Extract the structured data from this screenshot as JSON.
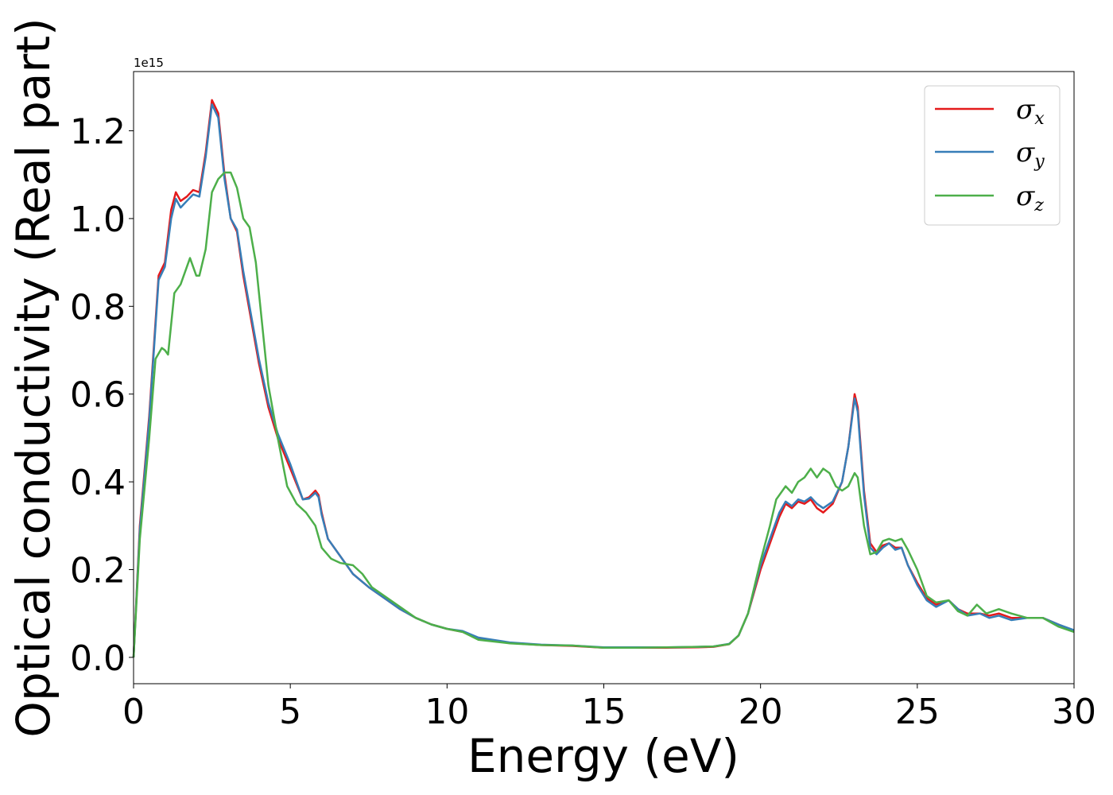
{
  "chart_data": {
    "type": "line",
    "title": "",
    "xlabel": "Energy (eV)",
    "ylabel": "Optical conductivity (Real part)",
    "y_offset_label": "1e15",
    "xlim": [
      0,
      30
    ],
    "ylim": [
      -0.06,
      1.335
    ],
    "x_ticks": [
      0,
      5,
      10,
      15,
      20,
      25,
      30
    ],
    "x_tick_labels": [
      "0",
      "5",
      "10",
      "15",
      "20",
      "25",
      "30"
    ],
    "y_ticks": [
      0.0,
      0.2,
      0.4,
      0.6,
      0.8,
      1.0,
      1.2
    ],
    "y_tick_labels": [
      "0.0",
      "0.2",
      "0.4",
      "0.6",
      "0.8",
      "1.0",
      "1.2"
    ],
    "grid": false,
    "legend_position": "top-right",
    "series": [
      {
        "name": "σx",
        "symbol": "σ",
        "subscript": "x",
        "color": "#e41a1c",
        "x": [
          0,
          0.2,
          0.5,
          0.8,
          1.0,
          1.2,
          1.35,
          1.5,
          1.7,
          1.9,
          2.1,
          2.3,
          2.5,
          2.7,
          2.9,
          3.1,
          3.3,
          3.5,
          3.8,
          4.0,
          4.3,
          4.6,
          5.0,
          5.4,
          5.6,
          5.8,
          5.9,
          6.0,
          6.2,
          6.5,
          7.0,
          7.5,
          8.0,
          8.5,
          9.0,
          9.5,
          10.0,
          10.5,
          11.0,
          12.0,
          13.0,
          14.0,
          15.0,
          16.0,
          17.0,
          18.0,
          18.5,
          19.0,
          19.3,
          19.6,
          20.0,
          20.3,
          20.6,
          20.8,
          21.0,
          21.2,
          21.4,
          21.6,
          21.8,
          22.0,
          22.3,
          22.6,
          22.8,
          23.0,
          23.1,
          23.3,
          23.5,
          23.7,
          23.9,
          24.1,
          24.3,
          24.5,
          24.7,
          25.0,
          25.3,
          25.6,
          26.0,
          26.3,
          26.6,
          27.0,
          27.3,
          27.6,
          28.0,
          28.5,
          29.0,
          29.5,
          30.0
        ],
        "y": [
          0.0,
          0.3,
          0.55,
          0.87,
          0.9,
          1.02,
          1.06,
          1.04,
          1.05,
          1.065,
          1.06,
          1.15,
          1.27,
          1.24,
          1.1,
          1.0,
          0.97,
          0.87,
          0.75,
          0.67,
          0.57,
          0.5,
          0.43,
          0.36,
          0.365,
          0.38,
          0.37,
          0.33,
          0.27,
          0.24,
          0.19,
          0.16,
          0.135,
          0.11,
          0.09,
          0.075,
          0.065,
          0.058,
          0.042,
          0.033,
          0.028,
          0.026,
          0.022,
          0.022,
          0.022,
          0.023,
          0.024,
          0.03,
          0.05,
          0.1,
          0.2,
          0.26,
          0.32,
          0.35,
          0.34,
          0.355,
          0.35,
          0.36,
          0.34,
          0.33,
          0.35,
          0.4,
          0.48,
          0.6,
          0.57,
          0.38,
          0.26,
          0.24,
          0.255,
          0.26,
          0.25,
          0.25,
          0.21,
          0.17,
          0.135,
          0.12,
          0.13,
          0.11,
          0.1,
          0.1,
          0.095,
          0.1,
          0.09,
          0.09,
          0.09,
          0.075,
          0.06
        ]
      },
      {
        "name": "σy",
        "symbol": "σ",
        "subscript": "y",
        "color": "#377eb8",
        "x": [
          0,
          0.2,
          0.5,
          0.8,
          1.0,
          1.2,
          1.35,
          1.5,
          1.7,
          1.9,
          2.1,
          2.3,
          2.5,
          2.7,
          2.9,
          3.1,
          3.3,
          3.5,
          3.8,
          4.0,
          4.3,
          4.6,
          5.0,
          5.4,
          5.6,
          5.8,
          5.9,
          6.0,
          6.2,
          6.5,
          7.0,
          7.5,
          8.0,
          8.5,
          9.0,
          9.5,
          10.0,
          10.5,
          11.0,
          12.0,
          13.0,
          14.0,
          15.0,
          16.0,
          17.0,
          18.0,
          18.5,
          19.0,
          19.3,
          19.6,
          20.0,
          20.3,
          20.6,
          20.8,
          21.0,
          21.2,
          21.4,
          21.6,
          21.8,
          22.0,
          22.3,
          22.6,
          22.8,
          23.0,
          23.1,
          23.3,
          23.5,
          23.7,
          23.9,
          24.1,
          24.3,
          24.5,
          24.7,
          25.0,
          25.3,
          25.6,
          26.0,
          26.3,
          26.6,
          27.0,
          27.3,
          27.6,
          28.0,
          28.5,
          29.0,
          29.5,
          30.0
        ],
        "y": [
          0.0,
          0.29,
          0.54,
          0.86,
          0.89,
          1.0,
          1.045,
          1.025,
          1.04,
          1.055,
          1.05,
          1.14,
          1.26,
          1.23,
          1.09,
          1.0,
          0.975,
          0.88,
          0.76,
          0.68,
          0.58,
          0.51,
          0.44,
          0.36,
          0.362,
          0.375,
          0.365,
          0.325,
          0.27,
          0.24,
          0.19,
          0.16,
          0.135,
          0.11,
          0.09,
          0.075,
          0.065,
          0.06,
          0.045,
          0.034,
          0.029,
          0.027,
          0.023,
          0.023,
          0.023,
          0.024,
          0.025,
          0.031,
          0.05,
          0.1,
          0.21,
          0.27,
          0.33,
          0.355,
          0.345,
          0.36,
          0.355,
          0.365,
          0.35,
          0.34,
          0.355,
          0.4,
          0.48,
          0.59,
          0.56,
          0.37,
          0.25,
          0.235,
          0.25,
          0.26,
          0.245,
          0.25,
          0.21,
          0.165,
          0.13,
          0.115,
          0.13,
          0.11,
          0.095,
          0.1,
          0.09,
          0.095,
          0.085,
          0.09,
          0.09,
          0.075,
          0.062
        ]
      },
      {
        "name": "σz",
        "symbol": "σ",
        "subscript": "z",
        "color": "#4daf4a",
        "x": [
          0,
          0.2,
          0.5,
          0.7,
          0.9,
          1.0,
          1.1,
          1.3,
          1.5,
          1.8,
          2.0,
          2.1,
          2.3,
          2.5,
          2.7,
          2.9,
          3.1,
          3.3,
          3.5,
          3.7,
          3.9,
          4.1,
          4.3,
          4.6,
          4.9,
          5.2,
          5.5,
          5.8,
          6.0,
          6.3,
          6.6,
          7.0,
          7.3,
          7.6,
          8.0,
          8.5,
          9.0,
          9.5,
          10.0,
          10.5,
          11.0,
          12.0,
          13.0,
          14.0,
          15.0,
          16.0,
          17.0,
          18.0,
          18.5,
          19.0,
          19.3,
          19.6,
          20.0,
          20.3,
          20.5,
          20.8,
          21.0,
          21.2,
          21.4,
          21.6,
          21.8,
          22.0,
          22.2,
          22.4,
          22.6,
          22.8,
          23.0,
          23.1,
          23.3,
          23.5,
          23.7,
          23.9,
          24.1,
          24.3,
          24.5,
          24.7,
          25.0,
          25.3,
          25.6,
          26.0,
          26.3,
          26.6,
          26.9,
          27.2,
          27.6,
          28.0,
          28.5,
          29.0,
          29.5,
          30.0
        ],
        "y": [
          0.0,
          0.27,
          0.5,
          0.68,
          0.705,
          0.7,
          0.69,
          0.83,
          0.85,
          0.91,
          0.87,
          0.87,
          0.93,
          1.06,
          1.09,
          1.105,
          1.105,
          1.07,
          1.0,
          0.98,
          0.9,
          0.76,
          0.62,
          0.5,
          0.39,
          0.35,
          0.33,
          0.3,
          0.25,
          0.225,
          0.215,
          0.21,
          0.19,
          0.16,
          0.14,
          0.115,
          0.09,
          0.075,
          0.065,
          0.058,
          0.04,
          0.032,
          0.028,
          0.027,
          0.022,
          0.022,
          0.023,
          0.024,
          0.025,
          0.03,
          0.05,
          0.1,
          0.22,
          0.3,
          0.36,
          0.39,
          0.375,
          0.4,
          0.41,
          0.43,
          0.41,
          0.43,
          0.42,
          0.39,
          0.38,
          0.39,
          0.42,
          0.41,
          0.3,
          0.235,
          0.24,
          0.265,
          0.27,
          0.265,
          0.27,
          0.245,
          0.2,
          0.14,
          0.125,
          0.13,
          0.105,
          0.095,
          0.12,
          0.1,
          0.11,
          0.1,
          0.09,
          0.09,
          0.07,
          0.058
        ]
      }
    ]
  }
}
